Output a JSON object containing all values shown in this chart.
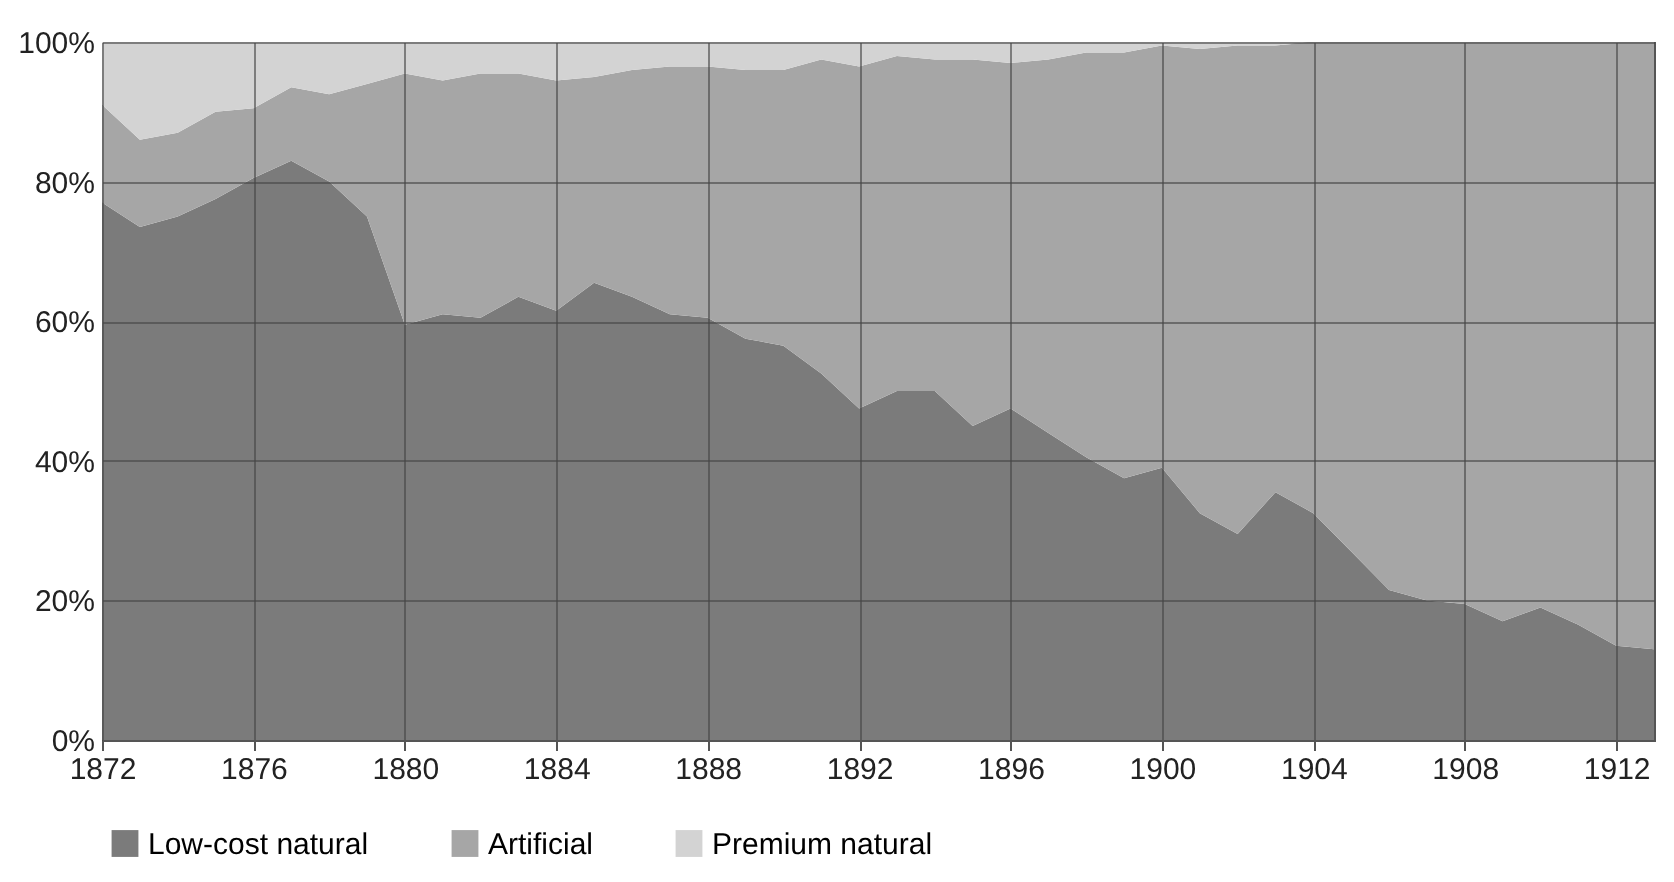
{
  "chart_data": {
    "type": "area",
    "stacked": true,
    "x": [
      1872,
      1873,
      1874,
      1875,
      1876,
      1877,
      1878,
      1879,
      1880,
      1881,
      1882,
      1883,
      1884,
      1885,
      1886,
      1887,
      1888,
      1889,
      1890,
      1891,
      1892,
      1893,
      1894,
      1895,
      1896,
      1897,
      1898,
      1899,
      1900,
      1901,
      1902,
      1903,
      1904,
      1905,
      1906,
      1907,
      1908,
      1909,
      1910,
      1911,
      1912,
      1913
    ],
    "series": [
      {
        "name": "Low-cost natural",
        "color": "#7b7b7b",
        "values": [
          77,
          73.5,
          75,
          77.5,
          80.5,
          83,
          80,
          75,
          59.5,
          61,
          60.5,
          63.5,
          61.5,
          65.5,
          63.5,
          61,
          60.5,
          57.5,
          56.5,
          52.5,
          47.5,
          50,
          50,
          45,
          47.5,
          44,
          40.5,
          37.5,
          39,
          32.5,
          29.5,
          35.5,
          32.5,
          27,
          21.5,
          20,
          19.5,
          17,
          19,
          16.5,
          13.5,
          13
        ]
      },
      {
        "name": "Artificial",
        "color": "#a6a6a6",
        "values": [
          14,
          12.5,
          12,
          12.5,
          10,
          10.5,
          12.5,
          19,
          36,
          33.5,
          35,
          32,
          33,
          29.5,
          32.5,
          35.5,
          36,
          38.5,
          39.5,
          45,
          49,
          48,
          47.5,
          52.5,
          49.5,
          53.5,
          58,
          61,
          60.5,
          66.5,
          70,
          64,
          67.5,
          73,
          78.5,
          80,
          80.5,
          83,
          81,
          83.5,
          86.5,
          87
        ]
      },
      {
        "name": "Premium natural",
        "color": "#d3d3d3",
        "values": [
          9,
          14,
          13,
          10,
          9.5,
          6.5,
          7.5,
          6,
          4.5,
          5.5,
          4.5,
          4.5,
          5.5,
          5,
          4,
          3.5,
          3.5,
          4,
          4,
          2.5,
          3.5,
          2,
          2.5,
          2.5,
          3,
          2.5,
          1.5,
          1.5,
          0.5,
          1,
          0.5,
          0.5,
          0,
          0,
          0,
          0,
          0,
          0,
          0,
          0,
          0,
          0
        ]
      }
    ],
    "xlim": [
      1872,
      1913
    ],
    "xticks": [
      1872,
      1876,
      1880,
      1884,
      1888,
      1892,
      1896,
      1900,
      1904,
      1908,
      1912
    ],
    "ylim": [
      0,
      100
    ],
    "yticks": [
      {
        "value": 0,
        "label": "0%"
      },
      {
        "value": 20,
        "label": "20%"
      },
      {
        "value": 40,
        "label": "40%"
      },
      {
        "value": 60,
        "label": "60%"
      },
      {
        "value": 80,
        "label": "80%"
      },
      {
        "value": 100,
        "label": "100%"
      }
    ],
    "grid": true,
    "legend": "bottom"
  }
}
